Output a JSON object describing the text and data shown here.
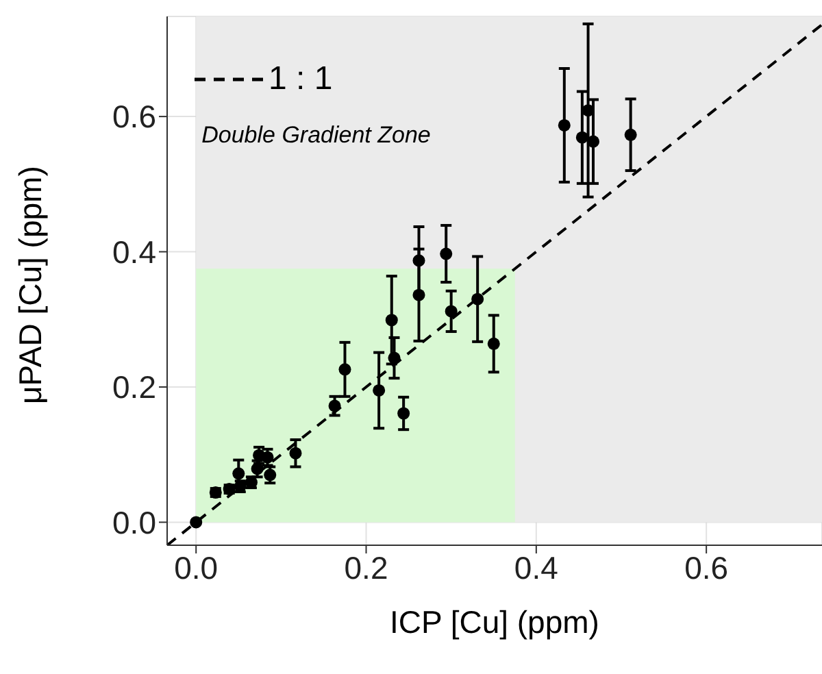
{
  "chart_data": {
    "type": "scatter",
    "xlabel": "ICP [Cu] (ppm)",
    "ylabel": "μPAD [Cu] (ppm)",
    "xlim": [
      -0.034,
      0.736
    ],
    "ylim": [
      -0.034,
      0.748
    ],
    "xticks": [
      {
        "value": 0,
        "label": "0.0"
      },
      0.2,
      0.4,
      0.6
    ],
    "yticks": [
      {
        "value": 0,
        "label": "0.0"
      },
      0.2,
      0.4,
      0.6
    ],
    "grid": true,
    "legend": "top left",
    "bands": [
      {
        "axis": "x",
        "from": 0,
        "to": 0.736,
        "label": "Double Gradient Zone",
        "color": "#ebebeb"
      },
      {
        "axis": "x",
        "from": 0,
        "to": 0.375,
        "color": "#d9f8d3"
      }
    ],
    "series": [
      {
        "color": "#000000",
        "marker": "circle",
        "x": [
          0,
          0.023,
          0.039,
          0.05,
          0.052,
          0.065,
          0.072,
          0.074,
          0.084,
          0.087,
          0.117,
          0.163,
          0.175,
          0.215,
          0.23,
          0.233,
          0.244,
          0.262,
          0.262,
          0.294,
          0.3,
          0.331,
          0.35,
          0.433,
          0.454,
          0.461,
          0.467,
          0.511
        ],
        "values": [
          0,
          0.044,
          0.049,
          0.072,
          0.053,
          0.059,
          0.079,
          0.099,
          0.096,
          0.07,
          0.102,
          0.172,
          0.226,
          0.195,
          0.299,
          0.243,
          0.161,
          0.336,
          0.387,
          0.397,
          0.312,
          0.33,
          0.264,
          0.587,
          0.569,
          0.609,
          0.563,
          0.573
        ],
        "errors": [
          null,
          0.006,
          0.006,
          0.02,
          0.008,
          0.008,
          0.012,
          0.012,
          0.012,
          0.012,
          0.02,
          0.014,
          0.04,
          0.056,
          0.065,
          0.03,
          0.024,
          0.068,
          0.05,
          0.042,
          0.03,
          0.063,
          0.042,
          0.084,
          0.068,
          0.128,
          0.062,
          0.053
        ]
      },
      {
        "type": "line",
        "name": "1 : 1",
        "color": "#000000",
        "line_style": "dashed",
        "x": [
          -0.034,
          0.736
        ],
        "values": [
          -0.034,
          0.736
        ]
      }
    ]
  }
}
